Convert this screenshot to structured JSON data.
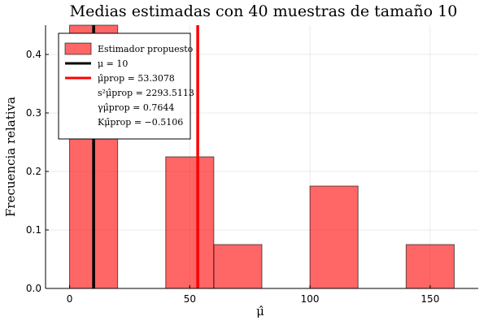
{
  "chart_data": {
    "type": "bar",
    "title": "Medias estimadas con 40 muestras de tamaño 10",
    "xlabel": "μ̂",
    "ylabel": "Frecuencia relativa",
    "xlim": [
      -10,
      170
    ],
    "ylim": [
      0,
      0.45
    ],
    "xticks": [
      0,
      50,
      100,
      150
    ],
    "yticks": [
      0.0,
      0.1,
      0.2,
      0.3,
      0.4
    ],
    "ytick_labels": [
      "0.0",
      "0.1",
      "0.2",
      "0.3",
      "0.4"
    ],
    "grid": true,
    "legend_position": "top-left",
    "bars": [
      {
        "x0": 0,
        "x1": 20,
        "value": 0.45
      },
      {
        "x0": 40,
        "x1": 60,
        "value": 0.225
      },
      {
        "x0": 60,
        "x1": 80,
        "value": 0.075
      },
      {
        "x0": 100,
        "x1": 120,
        "value": 0.175
      },
      {
        "x0": 140,
        "x1": 160,
        "value": 0.075
      }
    ],
    "vlines": [
      {
        "x": 10,
        "color": "#000000"
      },
      {
        "x": 53.3078,
        "color": "#ff0000"
      }
    ],
    "legend": {
      "entries": [
        {
          "label": "Estimador propuesto",
          "kind": "patch",
          "color": "#ff0000"
        },
        {
          "label": "μ = 10",
          "kind": "line",
          "color": "#000000"
        },
        {
          "label": "μ̂prop = 53.3078",
          "kind": "line",
          "color": "#ff0000"
        },
        {
          "label": "s²μ̂prop = 2293.5113",
          "kind": "none"
        },
        {
          "label": "γμ̂prop = 0.7644",
          "kind": "none"
        },
        {
          "label": "Kμ̂prop = −0.5106",
          "kind": "none"
        }
      ]
    },
    "colors": {
      "bar": "#ff0000",
      "true_mean": "#000000",
      "estimate": "#ff0000"
    }
  }
}
